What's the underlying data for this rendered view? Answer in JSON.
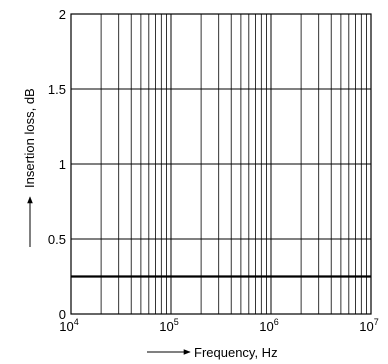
{
  "chart_data": {
    "type": "line",
    "xscale": "log",
    "xlim": [
      10000,
      10000000
    ],
    "ylim": [
      0,
      2
    ],
    "xlabel": "Frequency, Hz",
    "ylabel": "Insertion loss, dB",
    "x_ticks": [
      {
        "value": 10000,
        "base": "10",
        "exp": "4"
      },
      {
        "value": 100000,
        "base": "10",
        "exp": "5"
      },
      {
        "value": 1000000,
        "base": "10",
        "exp": "6"
      },
      {
        "value": 10000000,
        "base": "10",
        "exp": "7"
      }
    ],
    "y_ticks": [
      {
        "value": 0,
        "label": "0"
      },
      {
        "value": 0.5,
        "label": "0.5"
      },
      {
        "value": 1,
        "label": "1"
      },
      {
        "value": 1.5,
        "label": "1.5"
      },
      {
        "value": 2,
        "label": "2"
      }
    ],
    "grid": true,
    "series": [
      {
        "x": [
          10000,
          10000000
        ],
        "y": [
          0.25,
          0.25
        ]
      }
    ]
  }
}
